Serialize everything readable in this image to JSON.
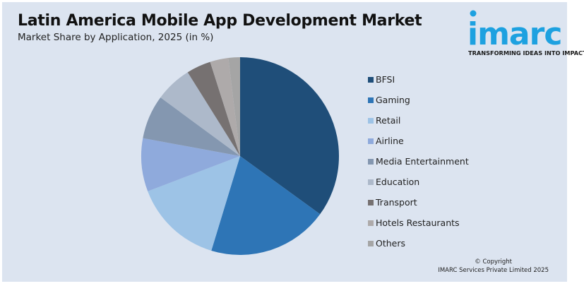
{
  "header": {
    "title": "Latin America Mobile App Development Market",
    "subtitle": "Market Share by Application, 2025 (in %)"
  },
  "logo": {
    "word": "imarc",
    "tagline": "TRANSFORMING IDEAS INTO IMPACT",
    "color": "#1da1e0"
  },
  "footer": {
    "copyright_line1": "© Copyright",
    "copyright_line2": "IMARC Services Private Limited 2025"
  },
  "chart_data": {
    "type": "pie",
    "title": "Latin America Mobile App Development Market",
    "subtitle": "Market Share by Application, 2025 (in %)",
    "legend_position": "right",
    "start_angle": "12 o'clock, clockwise",
    "categories": [
      "BFSI",
      "Gaming",
      "Retail",
      "Airline",
      "Media Entertainment",
      "Education",
      "Transport",
      "Hotels Restaurants",
      "Others"
    ],
    "values": [
      35,
      19.7,
      14.5,
      8.7,
      7.2,
      6,
      4,
      3,
      1.9
    ],
    "colors": [
      "#1f4e79",
      "#2e75b6",
      "#9dc3e6",
      "#8faadc",
      "#8497b0",
      "#adb9ca",
      "#767171",
      "#aeaaaa",
      "#a5a5a5"
    ]
  }
}
